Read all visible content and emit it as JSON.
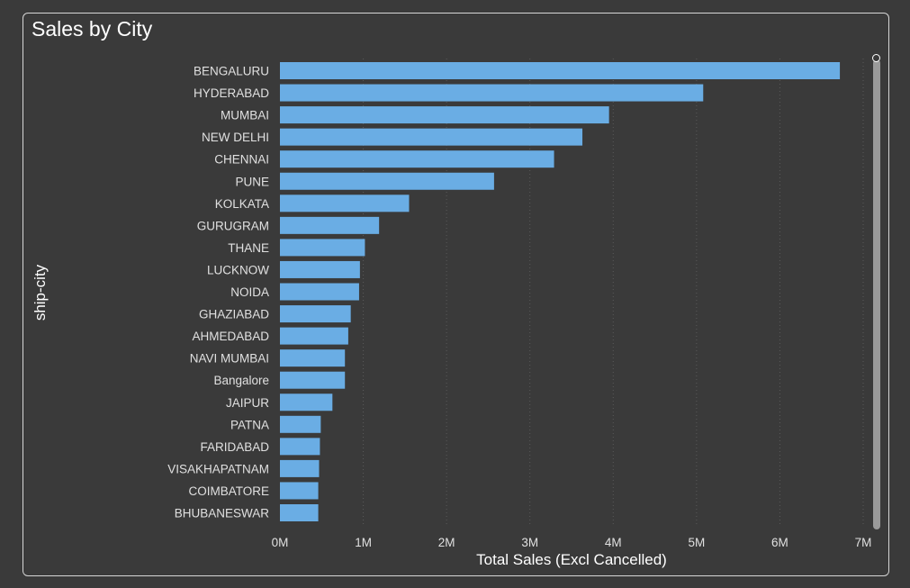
{
  "chart_data": {
    "type": "bar",
    "orientation": "horizontal",
    "title": "Sales by City",
    "xlabel": "Total Sales (Excl Cancelled)",
    "ylabel": "ship-city",
    "categories": [
      "BENGALURU",
      "HYDERABAD",
      "MUMBAI",
      "NEW DELHI",
      "CHENNAI",
      "PUNE",
      "KOLKATA",
      "GURUGRAM",
      "THANE",
      "LUCKNOW",
      "NOIDA",
      "GHAZIABAD",
      "AHMEDABAD",
      "NAVI MUMBAI",
      "Bangalore",
      "JAIPUR",
      "PATNA",
      "FARIDABAD",
      "VISAKHAPATNAM",
      "COIMBATORE",
      "BHUBANESWAR"
    ],
    "values": [
      6720000,
      5080000,
      3950000,
      3630000,
      3290000,
      2570000,
      1550000,
      1190000,
      1020000,
      960000,
      950000,
      850000,
      820000,
      780000,
      780000,
      630000,
      490000,
      480000,
      470000,
      460000,
      460000
    ],
    "xlim": [
      0,
      7000000
    ],
    "xticks": [
      0,
      1000000,
      2000000,
      3000000,
      4000000,
      5000000,
      6000000,
      7000000
    ],
    "xtick_labels": [
      "0M",
      "1M",
      "2M",
      "3M",
      "4M",
      "5M",
      "6M",
      "7M"
    ],
    "grid": "vertical dotted",
    "bar_color": "#6aade4"
  },
  "colors": {
    "background": "#3a3a3a",
    "text": "#ffffff",
    "tick_text": "#e0e0e0",
    "grid": "#5a5a5a"
  }
}
